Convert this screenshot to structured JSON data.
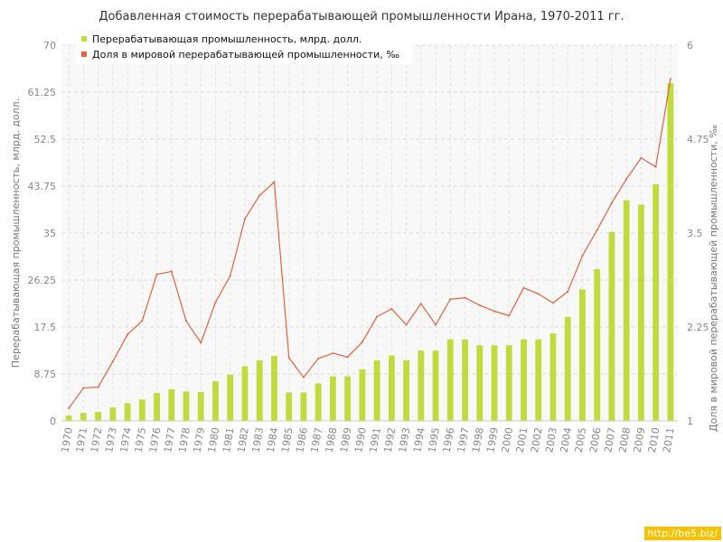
{
  "chart_data": {
    "type": "bar+line",
    "title": "Добавленная стоимость перерабатывающей промышленности Ирана, 1970-2011 гг.",
    "ylabel_left": "Перерабатывающая промышленность, млрд. долл.",
    "ylabel_right": "Доля в мировой перерабатывающей промышленности, ‰",
    "categories": [
      "1970",
      "1971",
      "1972",
      "1973",
      "1974",
      "1975",
      "1976",
      "1977",
      "1978",
      "1979",
      "1980",
      "1981",
      "1982",
      "1983",
      "1984",
      "1985",
      "1986",
      "1987",
      "1988",
      "1989",
      "1990",
      "1991",
      "1992",
      "1993",
      "1994",
      "1995",
      "1996",
      "1997",
      "1998",
      "1999",
      "2000",
      "2001",
      "2002",
      "2003",
      "2004",
      "2005",
      "2006",
      "2007",
      "2008",
      "2009",
      "2010",
      "2011"
    ],
    "left_axis": {
      "min": 0,
      "max": 70,
      "ticks": [
        "0",
        "8.75",
        "17.5",
        "26.25",
        "35",
        "43.75",
        "52.5",
        "61.25",
        "70"
      ]
    },
    "right_axis": {
      "min": 1,
      "max": 6,
      "ticks": [
        "1",
        "2.25",
        "3.5",
        "4.75",
        "6"
      ]
    },
    "series": [
      {
        "name": "Перерабатывающая промышленность, млрд. долл.",
        "type": "bar",
        "axis": "left",
        "color": "#c0dc3c",
        "values": [
          1.0,
          1.5,
          1.7,
          2.5,
          3.3,
          4.0,
          5.2,
          5.9,
          5.5,
          5.4,
          7.4,
          8.6,
          10.2,
          11.3,
          12.1,
          5.3,
          5.3,
          7.0,
          8.3,
          8.3,
          9.6,
          11.3,
          12.2,
          11.3,
          13.1,
          13.1,
          15.2,
          15.2,
          14.1,
          14.1,
          14.1,
          15.2,
          15.2,
          16.3,
          19.4,
          24.5,
          28.3,
          35.2,
          41.1,
          40.3,
          44.1,
          62.9
        ]
      },
      {
        "name": "Доля в мировой перерабатывающей промышленности, ‰",
        "type": "line",
        "axis": "right",
        "color": "#e0643c",
        "values": [
          1.17,
          1.44,
          1.45,
          1.79,
          2.15,
          2.33,
          2.95,
          2.99,
          2.33,
          2.04,
          2.58,
          2.93,
          3.69,
          4.0,
          4.18,
          1.84,
          1.58,
          1.83,
          1.9,
          1.85,
          2.05,
          2.39,
          2.49,
          2.28,
          2.56,
          2.28,
          2.62,
          2.64,
          2.54,
          2.46,
          2.4,
          2.77,
          2.69,
          2.57,
          2.72,
          3.2,
          3.54,
          3.9,
          4.22,
          4.5,
          4.38,
          5.55
        ]
      }
    ],
    "legend": {
      "placement": "top-left"
    },
    "grid": true
  },
  "watermark": "http://be5.biz/"
}
